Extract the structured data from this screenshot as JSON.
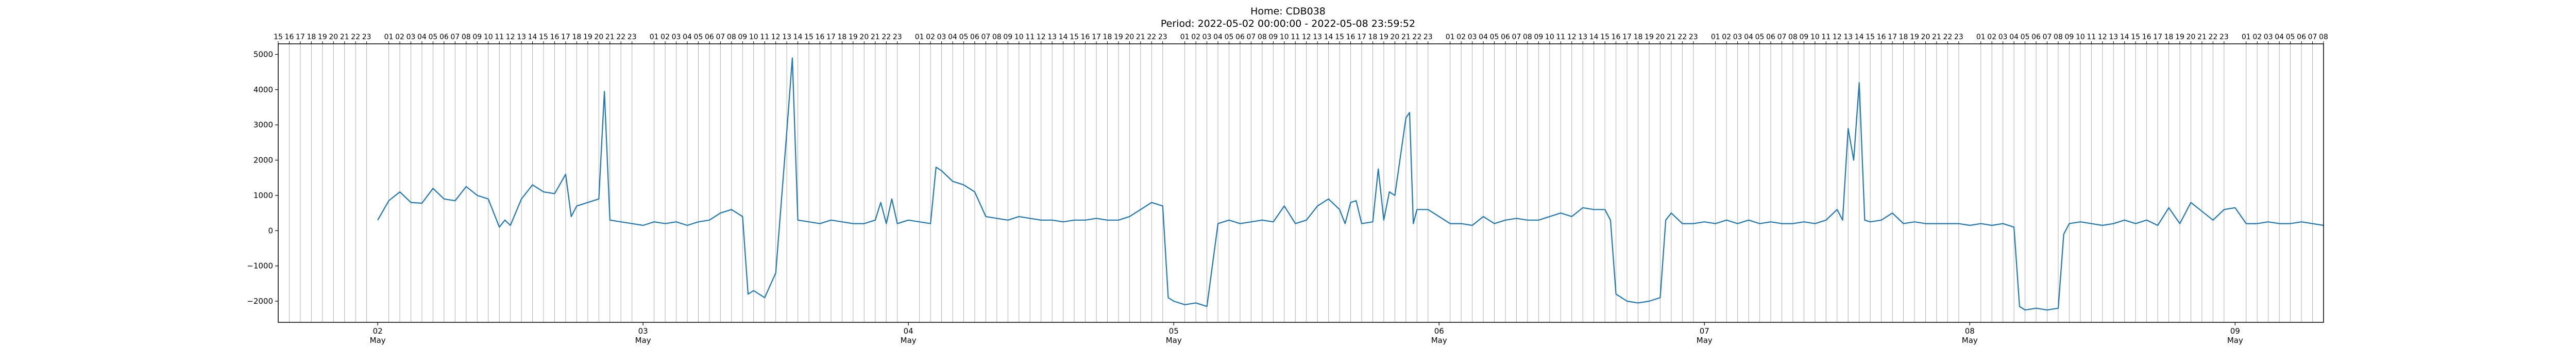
{
  "chart_data": {
    "type": "line",
    "title": "Home: CDB038",
    "subtitle": "Period: 2022-05-02 00:00:00 - 2022-05-08 23:59:52",
    "xlabel": "",
    "ylabel": "",
    "x_range": [
      "2022-05-01T15:00",
      "2022-05-09T08:00"
    ],
    "ylim": [
      -2600,
      5300
    ],
    "yticks": [
      -2000,
      -1000,
      0,
      1000,
      2000,
      3000,
      4000,
      5000
    ],
    "xticks": [
      {
        "date": "2022-05-02",
        "label": "02",
        "month": "May"
      },
      {
        "date": "2022-05-03",
        "label": "03",
        "month": "May"
      },
      {
        "date": "2022-05-04",
        "label": "04",
        "month": "May"
      },
      {
        "date": "2022-05-05",
        "label": "05",
        "month": "May"
      },
      {
        "date": "2022-05-06",
        "label": "06",
        "month": "May"
      },
      {
        "date": "2022-05-07",
        "label": "07",
        "month": "May"
      },
      {
        "date": "2022-05-08",
        "label": "08",
        "month": "May"
      },
      {
        "date": "2022-05-09",
        "label": "09",
        "month": "May"
      }
    ],
    "top_axis": "hour of day (16 … 23, 01 … 23, … 01 … 08); vertical gray gridline each hour",
    "grid": "vertical gridlines every hour",
    "legend": "none",
    "series_color": "#1f77b4",
    "gridline_color": "#b0b0b0",
    "series": [
      {
        "points": [
          [
            "2022-05-02T00:00",
            300
          ],
          [
            "2022-05-02T01:00",
            850
          ],
          [
            "2022-05-02T02:00",
            1100
          ],
          [
            "2022-05-02T03:00",
            800
          ],
          [
            "2022-05-02T04:00",
            780
          ],
          [
            "2022-05-02T05:00",
            1200
          ],
          [
            "2022-05-02T06:00",
            900
          ],
          [
            "2022-05-02T07:00",
            850
          ],
          [
            "2022-05-02T08:00",
            1250
          ],
          [
            "2022-05-02T09:00",
            1000
          ],
          [
            "2022-05-02T10:00",
            900
          ],
          [
            "2022-05-02T11:00",
            100
          ],
          [
            "2022-05-02T11:30",
            300
          ],
          [
            "2022-05-02T12:00",
            150
          ],
          [
            "2022-05-02T13:00",
            900
          ],
          [
            "2022-05-02T14:00",
            1300
          ],
          [
            "2022-05-02T15:00",
            1100
          ],
          [
            "2022-05-02T16:00",
            1050
          ],
          [
            "2022-05-02T17:00",
            1600
          ],
          [
            "2022-05-02T17:30",
            400
          ],
          [
            "2022-05-02T18:00",
            700
          ],
          [
            "2022-05-02T19:00",
            800
          ],
          [
            "2022-05-02T20:00",
            900
          ],
          [
            "2022-05-02T20:30",
            3950
          ],
          [
            "2022-05-02T21:00",
            300
          ],
          [
            "2022-05-02T22:00",
            250
          ],
          [
            "2022-05-02T23:00",
            200
          ],
          [
            "2022-05-03T00:00",
            150
          ],
          [
            "2022-05-03T01:00",
            250
          ],
          [
            "2022-05-03T02:00",
            200
          ],
          [
            "2022-05-03T03:00",
            250
          ],
          [
            "2022-05-03T04:00",
            150
          ],
          [
            "2022-05-03T05:00",
            250
          ],
          [
            "2022-05-03T06:00",
            300
          ],
          [
            "2022-05-03T07:00",
            500
          ],
          [
            "2022-05-03T08:00",
            600
          ],
          [
            "2022-05-03T09:00",
            400
          ],
          [
            "2022-05-03T09:30",
            -1800
          ],
          [
            "2022-05-03T10:00",
            -1700
          ],
          [
            "2022-05-03T11:00",
            -1900
          ],
          [
            "2022-05-03T12:00",
            -1200
          ],
          [
            "2022-05-03T12:30",
            800
          ],
          [
            "2022-05-03T13:00",
            2800
          ],
          [
            "2022-05-03T13:30",
            4900
          ],
          [
            "2022-05-03T14:00",
            300
          ],
          [
            "2022-05-03T15:00",
            250
          ],
          [
            "2022-05-03T16:00",
            200
          ],
          [
            "2022-05-03T17:00",
            300
          ],
          [
            "2022-05-03T18:00",
            250
          ],
          [
            "2022-05-03T19:00",
            200
          ],
          [
            "2022-05-03T20:00",
            200
          ],
          [
            "2022-05-03T21:00",
            300
          ],
          [
            "2022-05-03T21:30",
            800
          ],
          [
            "2022-05-03T22:00",
            200
          ],
          [
            "2022-05-03T22:30",
            900
          ],
          [
            "2022-05-03T23:00",
            200
          ],
          [
            "2022-05-04T00:00",
            300
          ],
          [
            "2022-05-04T01:00",
            250
          ],
          [
            "2022-05-04T02:00",
            200
          ],
          [
            "2022-05-04T02:30",
            1800
          ],
          [
            "2022-05-04T03:00",
            1700
          ],
          [
            "2022-05-04T04:00",
            1400
          ],
          [
            "2022-05-04T05:00",
            1300
          ],
          [
            "2022-05-04T06:00",
            1100
          ],
          [
            "2022-05-04T07:00",
            400
          ],
          [
            "2022-05-04T08:00",
            350
          ],
          [
            "2022-05-04T09:00",
            300
          ],
          [
            "2022-05-04T10:00",
            400
          ],
          [
            "2022-05-04T11:00",
            350
          ],
          [
            "2022-05-04T12:00",
            300
          ],
          [
            "2022-05-04T13:00",
            300
          ],
          [
            "2022-05-04T14:00",
            250
          ],
          [
            "2022-05-04T15:00",
            300
          ],
          [
            "2022-05-04T16:00",
            300
          ],
          [
            "2022-05-04T17:00",
            350
          ],
          [
            "2022-05-04T18:00",
            300
          ],
          [
            "2022-05-04T19:00",
            300
          ],
          [
            "2022-05-04T20:00",
            400
          ],
          [
            "2022-05-04T21:00",
            600
          ],
          [
            "2022-05-04T22:00",
            800
          ],
          [
            "2022-05-04T23:00",
            700
          ],
          [
            "2022-05-04T23:30",
            -1900
          ],
          [
            "2022-05-05T00:00",
            -2000
          ],
          [
            "2022-05-05T01:00",
            -2100
          ],
          [
            "2022-05-05T02:00",
            -2050
          ],
          [
            "2022-05-05T03:00",
            -2150
          ],
          [
            "2022-05-05T04:00",
            200
          ],
          [
            "2022-05-05T05:00",
            300
          ],
          [
            "2022-05-05T06:00",
            200
          ],
          [
            "2022-05-05T07:00",
            250
          ],
          [
            "2022-05-05T08:00",
            300
          ],
          [
            "2022-05-05T09:00",
            250
          ],
          [
            "2022-05-05T10:00",
            700
          ],
          [
            "2022-05-05T11:00",
            200
          ],
          [
            "2022-05-05T12:00",
            300
          ],
          [
            "2022-05-05T13:00",
            700
          ],
          [
            "2022-05-05T14:00",
            900
          ],
          [
            "2022-05-05T15:00",
            600
          ],
          [
            "2022-05-05T15:30",
            200
          ],
          [
            "2022-05-05T16:00",
            800
          ],
          [
            "2022-05-05T16:30",
            850
          ],
          [
            "2022-05-05T17:00",
            200
          ],
          [
            "2022-05-05T18:00",
            250
          ],
          [
            "2022-05-05T18:30",
            1750
          ],
          [
            "2022-05-05T19:00",
            300
          ],
          [
            "2022-05-05T19:30",
            1100
          ],
          [
            "2022-05-05T20:00",
            1000
          ],
          [
            "2022-05-05T21:00",
            3200
          ],
          [
            "2022-05-05T21:20",
            3350
          ],
          [
            "2022-05-05T21:40",
            200
          ],
          [
            "2022-05-05T22:00",
            600
          ],
          [
            "2022-05-05T23:00",
            600
          ],
          [
            "2022-05-06T00:00",
            400
          ],
          [
            "2022-05-06T01:00",
            200
          ],
          [
            "2022-05-06T02:00",
            200
          ],
          [
            "2022-05-06T03:00",
            150
          ],
          [
            "2022-05-06T04:00",
            400
          ],
          [
            "2022-05-06T05:00",
            200
          ],
          [
            "2022-05-06T06:00",
            300
          ],
          [
            "2022-05-06T07:00",
            350
          ],
          [
            "2022-05-06T08:00",
            300
          ],
          [
            "2022-05-06T09:00",
            300
          ],
          [
            "2022-05-06T10:00",
            400
          ],
          [
            "2022-05-06T11:00",
            500
          ],
          [
            "2022-05-06T12:00",
            400
          ],
          [
            "2022-05-06T13:00",
            650
          ],
          [
            "2022-05-06T14:00",
            600
          ],
          [
            "2022-05-06T15:00",
            600
          ],
          [
            "2022-05-06T15:30",
            300
          ],
          [
            "2022-05-06T16:00",
            -1800
          ],
          [
            "2022-05-06T17:00",
            -2000
          ],
          [
            "2022-05-06T18:00",
            -2050
          ],
          [
            "2022-05-06T19:00",
            -2000
          ],
          [
            "2022-05-06T20:00",
            -1900
          ],
          [
            "2022-05-06T20:30",
            300
          ],
          [
            "2022-05-06T21:00",
            500
          ],
          [
            "2022-05-06T22:00",
            200
          ],
          [
            "2022-05-06T23:00",
            200
          ],
          [
            "2022-05-07T00:00",
            250
          ],
          [
            "2022-05-07T01:00",
            200
          ],
          [
            "2022-05-07T02:00",
            300
          ],
          [
            "2022-05-07T03:00",
            200
          ],
          [
            "2022-05-07T04:00",
            300
          ],
          [
            "2022-05-07T05:00",
            200
          ],
          [
            "2022-05-07T06:00",
            250
          ],
          [
            "2022-05-07T07:00",
            200
          ],
          [
            "2022-05-07T08:00",
            200
          ],
          [
            "2022-05-07T09:00",
            250
          ],
          [
            "2022-05-07T10:00",
            200
          ],
          [
            "2022-05-07T11:00",
            300
          ],
          [
            "2022-05-07T12:00",
            600
          ],
          [
            "2022-05-07T12:30",
            300
          ],
          [
            "2022-05-07T13:00",
            2900
          ],
          [
            "2022-05-07T13:30",
            2000
          ],
          [
            "2022-05-07T14:00",
            4200
          ],
          [
            "2022-05-07T14:30",
            300
          ],
          [
            "2022-05-07T15:00",
            250
          ],
          [
            "2022-05-07T16:00",
            300
          ],
          [
            "2022-05-07T17:00",
            500
          ],
          [
            "2022-05-07T18:00",
            200
          ],
          [
            "2022-05-07T19:00",
            250
          ],
          [
            "2022-05-07T20:00",
            200
          ],
          [
            "2022-05-07T21:00",
            200
          ],
          [
            "2022-05-07T22:00",
            200
          ],
          [
            "2022-05-07T23:00",
            200
          ],
          [
            "2022-05-08T00:00",
            150
          ],
          [
            "2022-05-08T01:00",
            200
          ],
          [
            "2022-05-08T02:00",
            150
          ],
          [
            "2022-05-08T03:00",
            200
          ],
          [
            "2022-05-08T04:00",
            100
          ],
          [
            "2022-05-08T04:30",
            -2150
          ],
          [
            "2022-05-08T05:00",
            -2250
          ],
          [
            "2022-05-08T06:00",
            -2200
          ],
          [
            "2022-05-08T07:00",
            -2250
          ],
          [
            "2022-05-08T08:00",
            -2200
          ],
          [
            "2022-05-08T08:30",
            -100
          ],
          [
            "2022-05-08T09:00",
            200
          ],
          [
            "2022-05-08T10:00",
            250
          ],
          [
            "2022-05-08T11:00",
            200
          ],
          [
            "2022-05-08T12:00",
            150
          ],
          [
            "2022-05-08T13:00",
            200
          ],
          [
            "2022-05-08T14:00",
            300
          ],
          [
            "2022-05-08T15:00",
            200
          ],
          [
            "2022-05-08T16:00",
            300
          ],
          [
            "2022-05-08T17:00",
            150
          ],
          [
            "2022-05-08T18:00",
            650
          ],
          [
            "2022-05-08T19:00",
            200
          ],
          [
            "2022-05-08T20:00",
            800
          ],
          [
            "2022-05-08T21:00",
            550
          ],
          [
            "2022-05-08T22:00",
            300
          ],
          [
            "2022-05-08T23:00",
            600
          ],
          [
            "2022-05-09T00:00",
            650
          ],
          [
            "2022-05-09T01:00",
            200
          ],
          [
            "2022-05-09T02:00",
            200
          ],
          [
            "2022-05-09T03:00",
            250
          ],
          [
            "2022-05-09T04:00",
            200
          ],
          [
            "2022-05-09T05:00",
            200
          ],
          [
            "2022-05-09T06:00",
            250
          ],
          [
            "2022-05-09T07:00",
            200
          ],
          [
            "2022-05-09T08:00",
            150
          ]
        ]
      }
    ]
  }
}
